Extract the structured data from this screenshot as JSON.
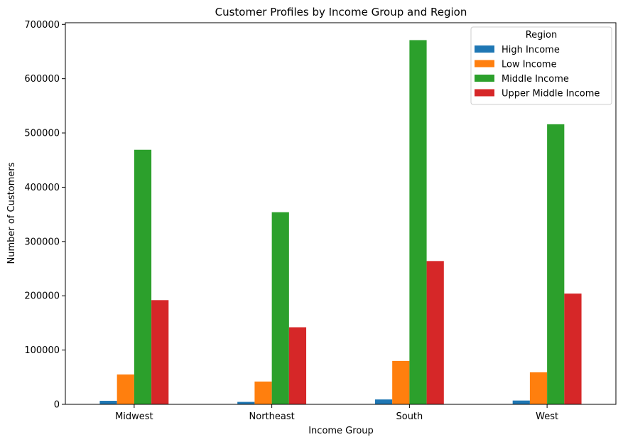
{
  "chart_data": {
    "type": "bar",
    "title": "Customer Profiles by Income Group and Region",
    "xlabel": "Income Group",
    "ylabel": "Number of Customers",
    "categories": [
      "Midwest",
      "Northeast",
      "South",
      "West"
    ],
    "series": [
      {
        "name": "High Income",
        "color": "#1f77b4",
        "values": [
          6500,
          4500,
          9000,
          7000
        ]
      },
      {
        "name": "Low Income",
        "color": "#ff7f0e",
        "values": [
          55000,
          42000,
          80000,
          59000
        ]
      },
      {
        "name": "Middle Income",
        "color": "#2ca02c",
        "values": [
          469000,
          354000,
          671000,
          516000
        ]
      },
      {
        "name": "Upper Middle Income",
        "color": "#d62728",
        "values": [
          192000,
          142000,
          264000,
          204000
        ]
      }
    ],
    "ylim": [
      0,
      703000
    ],
    "yticks": [
      0,
      100000,
      200000,
      300000,
      400000,
      500000,
      600000,
      700000
    ],
    "grid": false,
    "legend": {
      "title": "Region",
      "placement": "top-right"
    }
  }
}
